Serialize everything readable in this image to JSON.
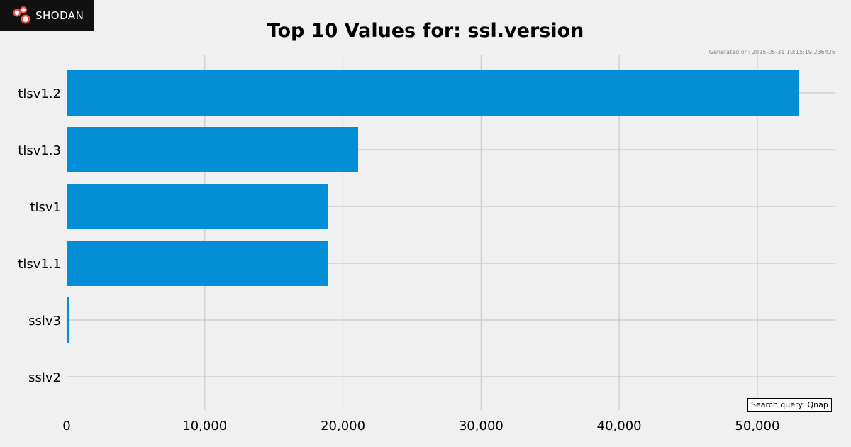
{
  "header": {
    "logo_text": "SHODAN",
    "generated_label": "Generated on: 2025-05-31 10:15:19.236426"
  },
  "query_label": "Search query: Qnap",
  "colors": {
    "bar": "#038ed6",
    "background": "#f0f0f0",
    "grid": "#cbcbcb",
    "logo_bg": "#111111",
    "logo_accent": "#e5534b"
  },
  "chart_data": {
    "type": "bar",
    "orientation": "horizontal",
    "title": "Top 10 Values for: ssl.version",
    "categories": [
      "tlsv1.2",
      "tlsv1.3",
      "tlsv1",
      "tlsv1.1",
      "sslv3",
      "sslv2"
    ],
    "values": [
      53000,
      21100,
      18900,
      18900,
      200,
      0
    ],
    "xlim": [
      0,
      55600
    ],
    "xticks": [
      0,
      10000,
      20000,
      30000,
      40000,
      50000
    ],
    "xtick_labels": [
      "0",
      "10,000",
      "20,000",
      "30,000",
      "40,000",
      "50,000"
    ],
    "grid": true,
    "xlabel": "",
    "ylabel": ""
  }
}
